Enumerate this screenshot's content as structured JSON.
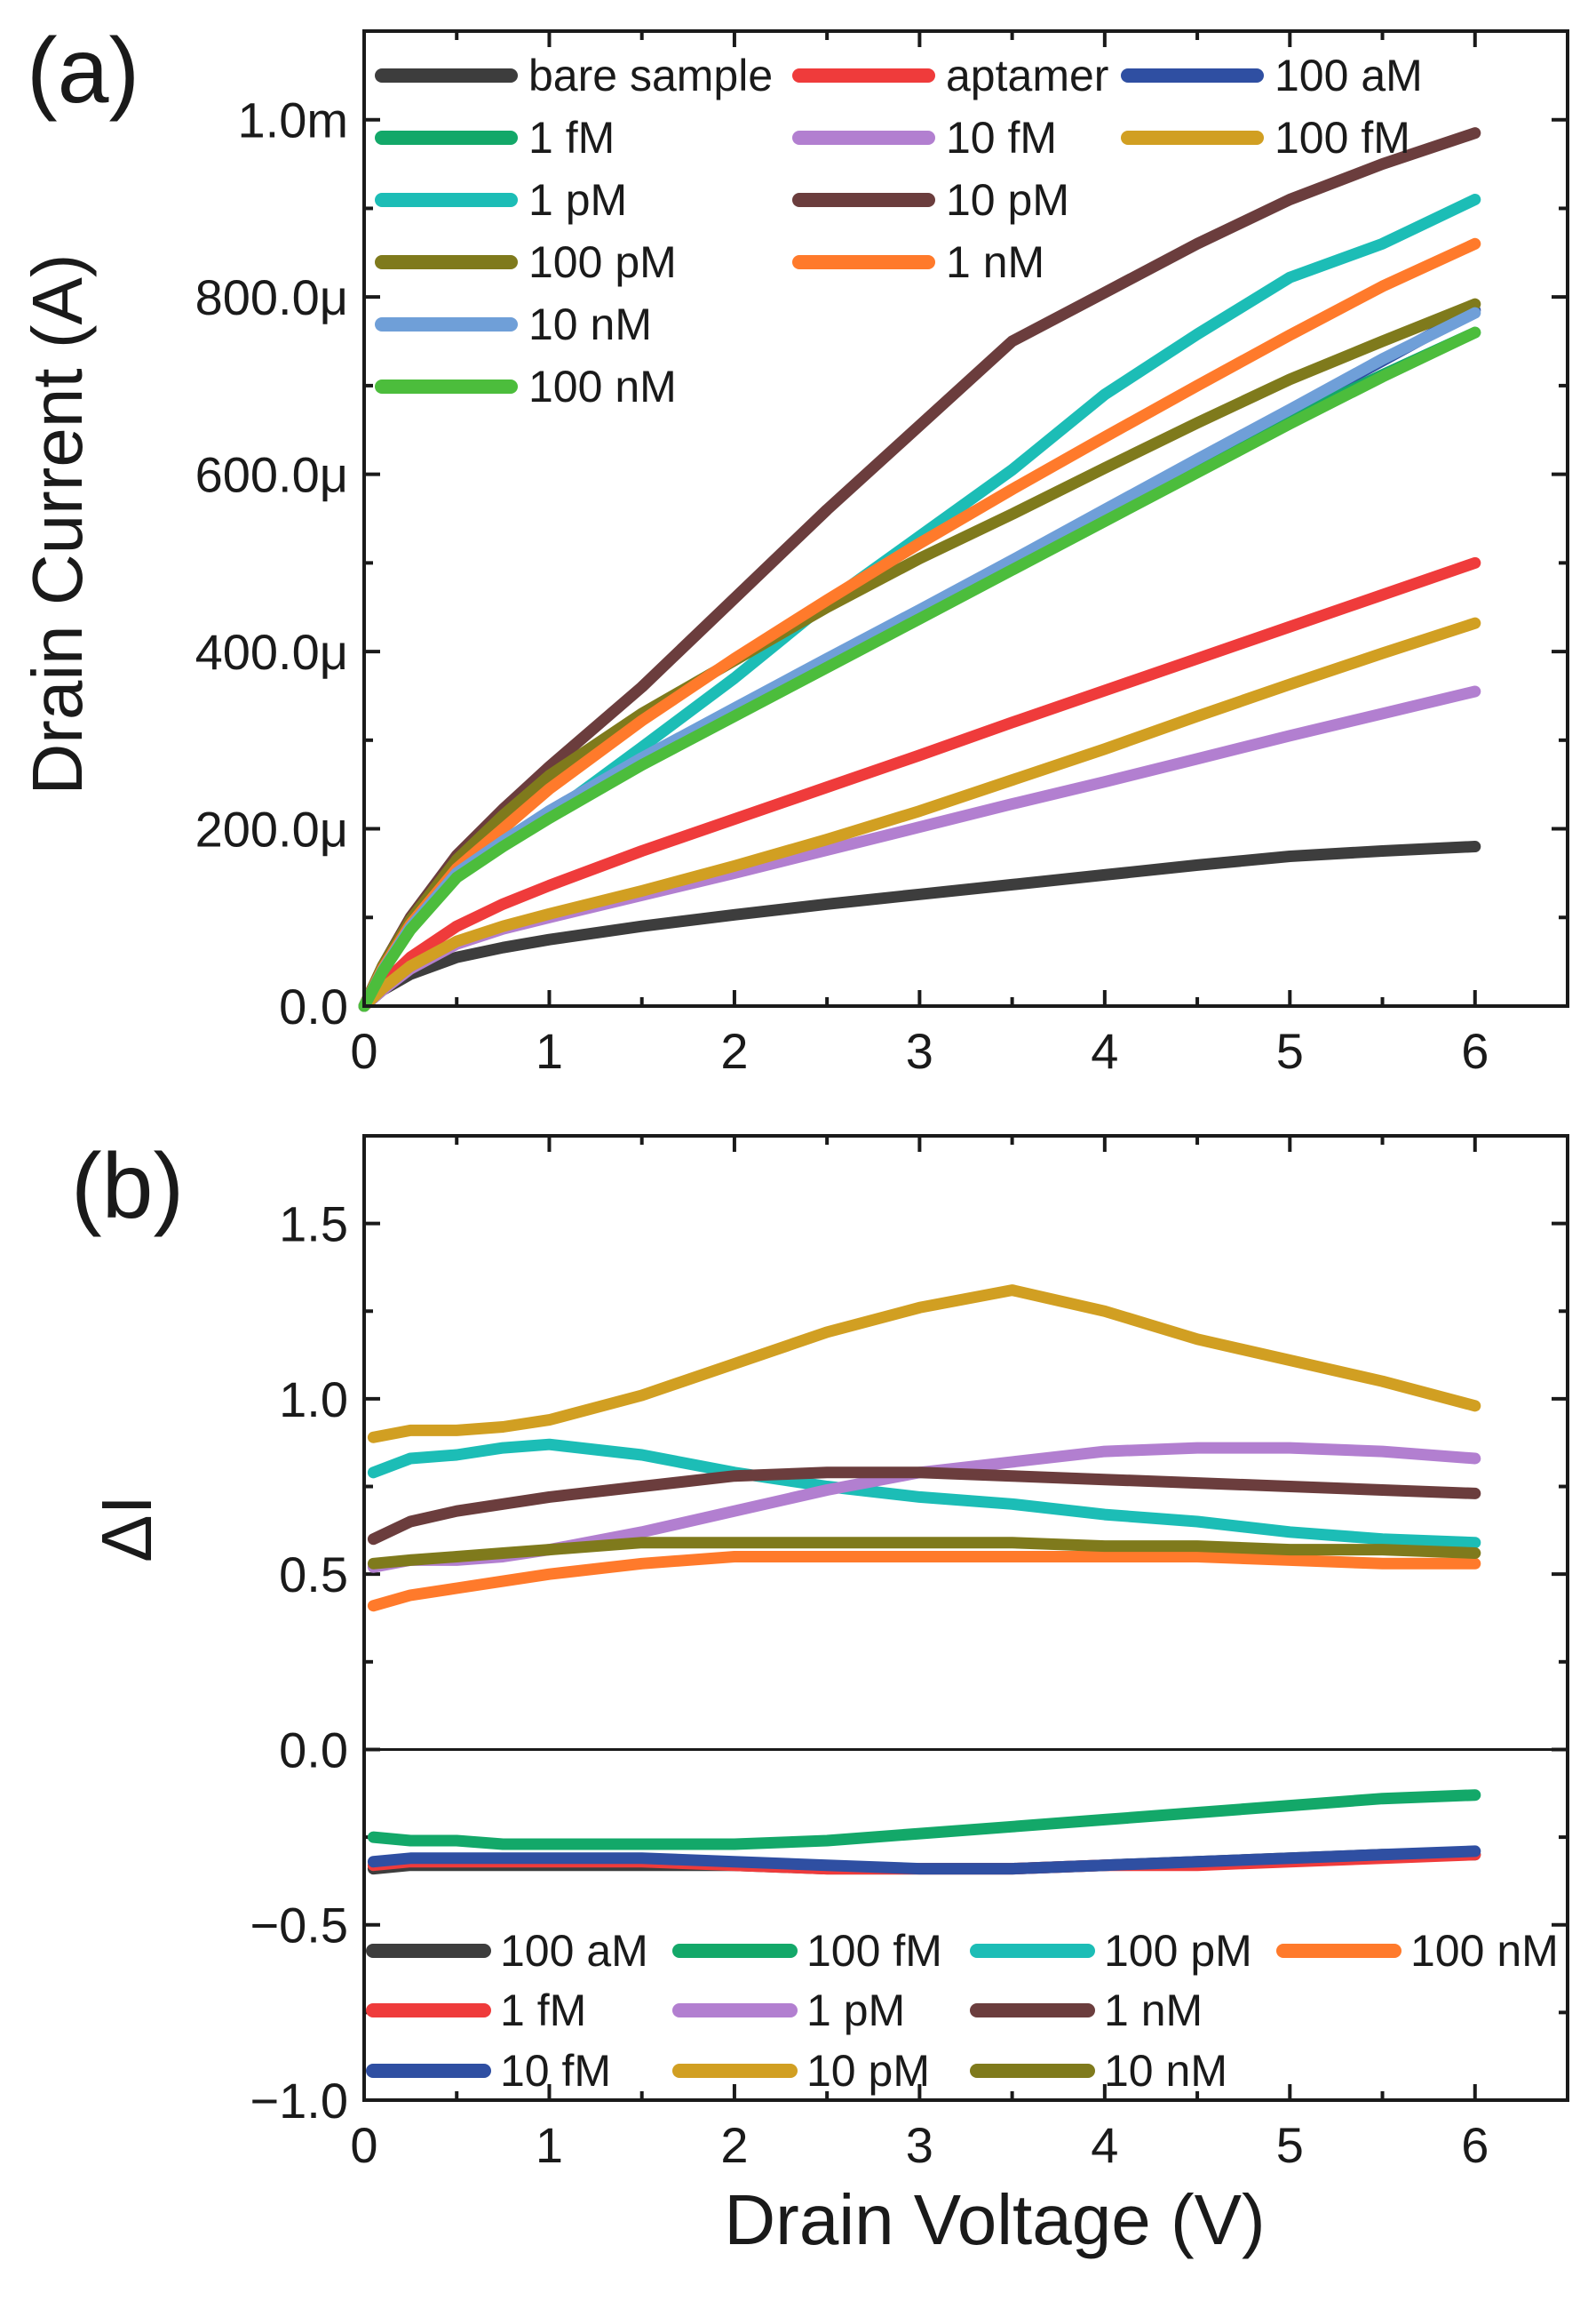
{
  "chart_data": [
    {
      "type": "line",
      "panel_label": "(a)",
      "xlabel": "",
      "ylabel": "Drain Current (A)",
      "xlim": [
        0,
        6.5
      ],
      "ylim": [
        0,
        0.0011
      ],
      "xticks": [
        0,
        1,
        2,
        3,
        4,
        5,
        6
      ],
      "xtick_labels": [
        "0",
        "1",
        "2",
        "3",
        "4",
        "5",
        "6"
      ],
      "yticks": [
        0,
        0.0002,
        0.0004,
        0.0006,
        0.0008,
        0.001
      ],
      "ytick_labels": [
        "0.0",
        "200.0μ",
        "400.0μ",
        "600.0μ",
        "800.0μ",
        "1.0m"
      ],
      "legend_location": "top-left",
      "x": [
        0,
        0.1,
        0.25,
        0.5,
        0.75,
        1,
        1.5,
        2,
        2.5,
        3,
        3.5,
        4,
        4.5,
        5,
        5.5,
        6
      ],
      "series": [
        {
          "name": "bare sample",
          "color": "#3d3d3d",
          "values": [
            0,
            1.8e-05,
            3.6e-05,
            5.5e-05,
            6.6e-05,
            7.5e-05,
            9e-05,
            0.000103,
            0.000115,
            0.000126,
            0.000137,
            0.000148,
            0.000159,
            0.000169,
            0.000175,
            0.00018
          ]
        },
        {
          "name": "aptamer",
          "color": "#ef3b3b",
          "values": [
            0,
            2.5e-05,
            5.5e-05,
            9e-05,
            0.000115,
            0.000136,
            0.000175,
            0.000211,
            0.000247,
            0.000283,
            0.00032,
            0.000356,
            0.000392,
            0.000428,
            0.000464,
            0.0005
          ]
        },
        {
          "name": "100 aM",
          "color": "#2f4fa2",
          "values": [
            0,
            4e-05,
            9e-05,
            0.00015,
            0.000185,
            0.00022,
            0.00028,
            0.000335,
            0.00039,
            0.000445,
            0.0005,
            0.000557,
            0.000614,
            0.000671,
            0.000728,
            0.000785
          ]
        },
        {
          "name": "1 fM",
          "color": "#13a869",
          "values": [
            0,
            4e-05,
            8.8e-05,
            0.000148,
            0.000183,
            0.000215,
            0.000275,
            0.00033,
            0.000386,
            0.000441,
            0.000497,
            0.000552,
            0.000607,
            0.000662,
            0.000712,
            0.00076
          ]
        },
        {
          "name": "10 fM",
          "color": "#b27fd0",
          "values": [
            0,
            1.8e-05,
            4.2e-05,
            7e-05,
            8.7e-05,
            0.0001,
            0.000125,
            0.00015,
            0.000176,
            0.000202,
            0.000228,
            0.000253,
            0.000279,
            0.000305,
            0.00033,
            0.000355
          ]
        },
        {
          "name": "100 fM",
          "color": "#d19f22",
          "values": [
            0,
            2e-05,
            4.5e-05,
            7.3e-05,
            9e-05,
            0.000104,
            0.00013,
            0.000158,
            0.000188,
            0.00022,
            0.000255,
            0.00029,
            0.000327,
            0.000363,
            0.000398,
            0.000432
          ]
        },
        {
          "name": "1 pM",
          "color": "#1cbdb6",
          "values": [
            0,
            4e-05,
            8.8e-05,
            0.000148,
            0.000183,
            0.000215,
            0.000292,
            0.00037,
            0.000455,
            0.00053,
            0.000605,
            0.00069,
            0.000758,
            0.000822,
            0.00086,
            0.00091
          ]
        },
        {
          "name": "10 pM",
          "color": "#6b3d3d",
          "values": [
            0,
            4.5e-05,
            0.0001,
            0.00017,
            0.000222,
            0.00027,
            0.00036,
            0.00046,
            0.00056,
            0.000655,
            0.00075,
            0.000805,
            0.00086,
            0.00091,
            0.00095,
            0.000985
          ]
        },
        {
          "name": "100 pM",
          "color": "#7f7a1c",
          "values": [
            0,
            4.5e-05,
            9.7e-05,
            0.000165,
            0.000215,
            0.00026,
            0.00033,
            0.00039,
            0.00045,
            0.000505,
            0.000555,
            0.000607,
            0.000658,
            0.000707,
            0.00075,
            0.000792
          ]
        },
        {
          "name": "1 nM",
          "color": "#ff7a2b",
          "values": [
            0,
            4.2e-05,
            9.2e-05,
            0.000155,
            0.0002,
            0.000245,
            0.000322,
            0.000392,
            0.000458,
            0.000522,
            0.000583,
            0.000642,
            0.0007,
            0.000757,
            0.000812,
            0.00086
          ]
        },
        {
          "name": "10 nM",
          "color": "#6f9fd8",
          "values": [
            0,
            4e-05,
            8.9e-05,
            0.00015,
            0.000186,
            0.00022,
            0.00028,
            0.000336,
            0.000392,
            0.000447,
            0.000503,
            0.00056,
            0.000617,
            0.000673,
            0.00073,
            0.000782
          ]
        },
        {
          "name": "100 nM",
          "color": "#4cbd3c",
          "values": [
            0,
            3.9e-05,
            8.6e-05,
            0.000145,
            0.00018,
            0.000212,
            0.000272,
            0.000327,
            0.000382,
            0.000437,
            0.000492,
            0.000547,
            0.000602,
            0.000657,
            0.00071,
            0.00076
          ]
        }
      ]
    },
    {
      "type": "line",
      "panel_label": "(b)",
      "xlabel": "Drain Voltage (V)",
      "ylabel": "ΔI",
      "xlim": [
        0,
        6.5
      ],
      "ylim": [
        -1.0,
        1.75
      ],
      "xticks": [
        0,
        1,
        2,
        3,
        4,
        5,
        6
      ],
      "xtick_labels": [
        "0",
        "1",
        "2",
        "3",
        "4",
        "5",
        "6"
      ],
      "yticks": [
        -1.0,
        -0.5,
        0.0,
        0.5,
        1.0,
        1.5
      ],
      "ytick_labels": [
        "−1.0",
        "−0.5",
        "0.0",
        "0.5",
        "1.0",
        "1.5"
      ],
      "zero_line": true,
      "legend_location": "bottom",
      "x": [
        0.05,
        0.25,
        0.5,
        0.75,
        1,
        1.5,
        2,
        2.5,
        3,
        3.5,
        4,
        4.5,
        5,
        5.5,
        6
      ],
      "series": [
        {
          "name": "100 aM",
          "color": "#3d3d3d",
          "values": [
            -0.34,
            -0.33,
            -0.33,
            -0.33,
            -0.33,
            -0.33,
            -0.33,
            -0.34,
            -0.34,
            -0.34,
            -0.33,
            -0.32,
            -0.31,
            -0.3,
            -0.3
          ]
        },
        {
          "name": "100 fM",
          "color": "#13a869",
          "values": [
            -0.25,
            -0.26,
            -0.26,
            -0.27,
            -0.27,
            -0.27,
            -0.27,
            -0.26,
            -0.24,
            -0.22,
            -0.2,
            -0.18,
            -0.16,
            -0.14,
            -0.13
          ]
        },
        {
          "name": "100 pM",
          "color": "#1cbdb6",
          "values": [
            0.79,
            0.83,
            0.84,
            0.86,
            0.87,
            0.84,
            0.79,
            0.75,
            0.72,
            0.7,
            0.67,
            0.65,
            0.62,
            0.6,
            0.59
          ]
        },
        {
          "name": "100 nM",
          "color": "#ff7a2b",
          "values": [
            0.41,
            0.44,
            0.46,
            0.48,
            0.5,
            0.53,
            0.55,
            0.55,
            0.55,
            0.55,
            0.55,
            0.55,
            0.54,
            0.53,
            0.53
          ]
        },
        {
          "name": "1 fM",
          "color": "#ef3b3b",
          "values": [
            -0.33,
            -0.32,
            -0.32,
            -0.32,
            -0.32,
            -0.32,
            -0.33,
            -0.34,
            -0.34,
            -0.34,
            -0.33,
            -0.33,
            -0.32,
            -0.31,
            -0.3
          ]
        },
        {
          "name": "1 pM",
          "color": "#b27fd0",
          "values": [
            0.52,
            0.54,
            0.54,
            0.55,
            0.57,
            0.62,
            0.68,
            0.74,
            0.79,
            0.82,
            0.85,
            0.86,
            0.86,
            0.85,
            0.83
          ]
        },
        {
          "name": "1 nM",
          "color": "#6b3d3d",
          "values": [
            0.6,
            0.65,
            0.68,
            0.7,
            0.72,
            0.75,
            0.78,
            0.79,
            0.79,
            0.78,
            0.77,
            0.76,
            0.75,
            0.74,
            0.73
          ]
        },
        {
          "name": "10 fM",
          "color": "#2f4fa2",
          "values": [
            -0.32,
            -0.31,
            -0.31,
            -0.31,
            -0.31,
            -0.31,
            -0.32,
            -0.33,
            -0.34,
            -0.34,
            -0.33,
            -0.32,
            -0.31,
            -0.3,
            -0.29
          ]
        },
        {
          "name": "10 pM",
          "color": "#d19f22",
          "values": [
            0.89,
            0.91,
            0.91,
            0.92,
            0.94,
            1.01,
            1.1,
            1.19,
            1.26,
            1.31,
            1.25,
            1.17,
            1.11,
            1.05,
            0.98
          ]
        },
        {
          "name": "10 nM",
          "color": "#7f7a1c",
          "values": [
            0.53,
            0.54,
            0.55,
            0.56,
            0.57,
            0.59,
            0.59,
            0.59,
            0.59,
            0.59,
            0.58,
            0.58,
            0.57,
            0.57,
            0.56
          ]
        }
      ]
    }
  ]
}
